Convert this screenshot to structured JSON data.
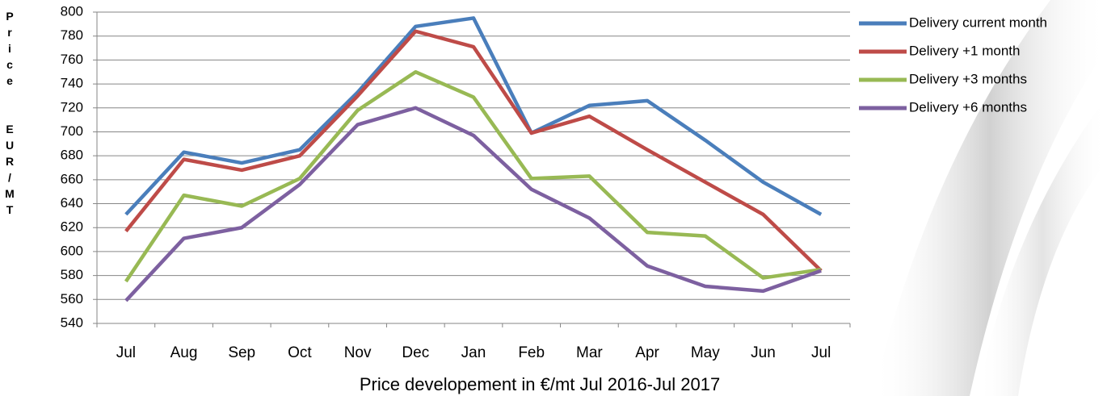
{
  "chart_data": {
    "type": "line",
    "title": "Price developement in €/mt Jul 2016-Jul 2017",
    "y_label": "Price  EUR/MT",
    "categories": [
      "Jul",
      "Aug",
      "Sep",
      "Oct",
      "Nov",
      "Dec",
      "Jan",
      "Feb",
      "Mar",
      "Apr",
      "May",
      "Jun",
      "Jul"
    ],
    "series": [
      {
        "name": "Delivery current month",
        "color": "#4a7ebb",
        "values": [
          631,
          683,
          674,
          685,
          733,
          788,
          795,
          699,
          722,
          726,
          693,
          658,
          631
        ]
      },
      {
        "name": "Delivery +1 month",
        "color": "#be4b48",
        "values": [
          617,
          677,
          668,
          680,
          730,
          784,
          771,
          699,
          713,
          685,
          658,
          631,
          584
        ]
      },
      {
        "name": "Delivery +3 months",
        "color": "#98b954",
        "values": [
          575,
          647,
          638,
          661,
          718,
          750,
          729,
          661,
          663,
          616,
          613,
          578,
          585
        ]
      },
      {
        "name": "Delivery +6 months",
        "color": "#7d60a0",
        "values": [
          559,
          611,
          620,
          656,
          706,
          720,
          697,
          652,
          628,
          588,
          571,
          567,
          584
        ]
      }
    ],
    "ylim": [
      540,
      800
    ],
    "yticks": [
      540,
      560,
      580,
      600,
      620,
      640,
      660,
      680,
      700,
      720,
      740,
      760,
      780,
      800
    ],
    "grid": true,
    "legend": "right"
  }
}
